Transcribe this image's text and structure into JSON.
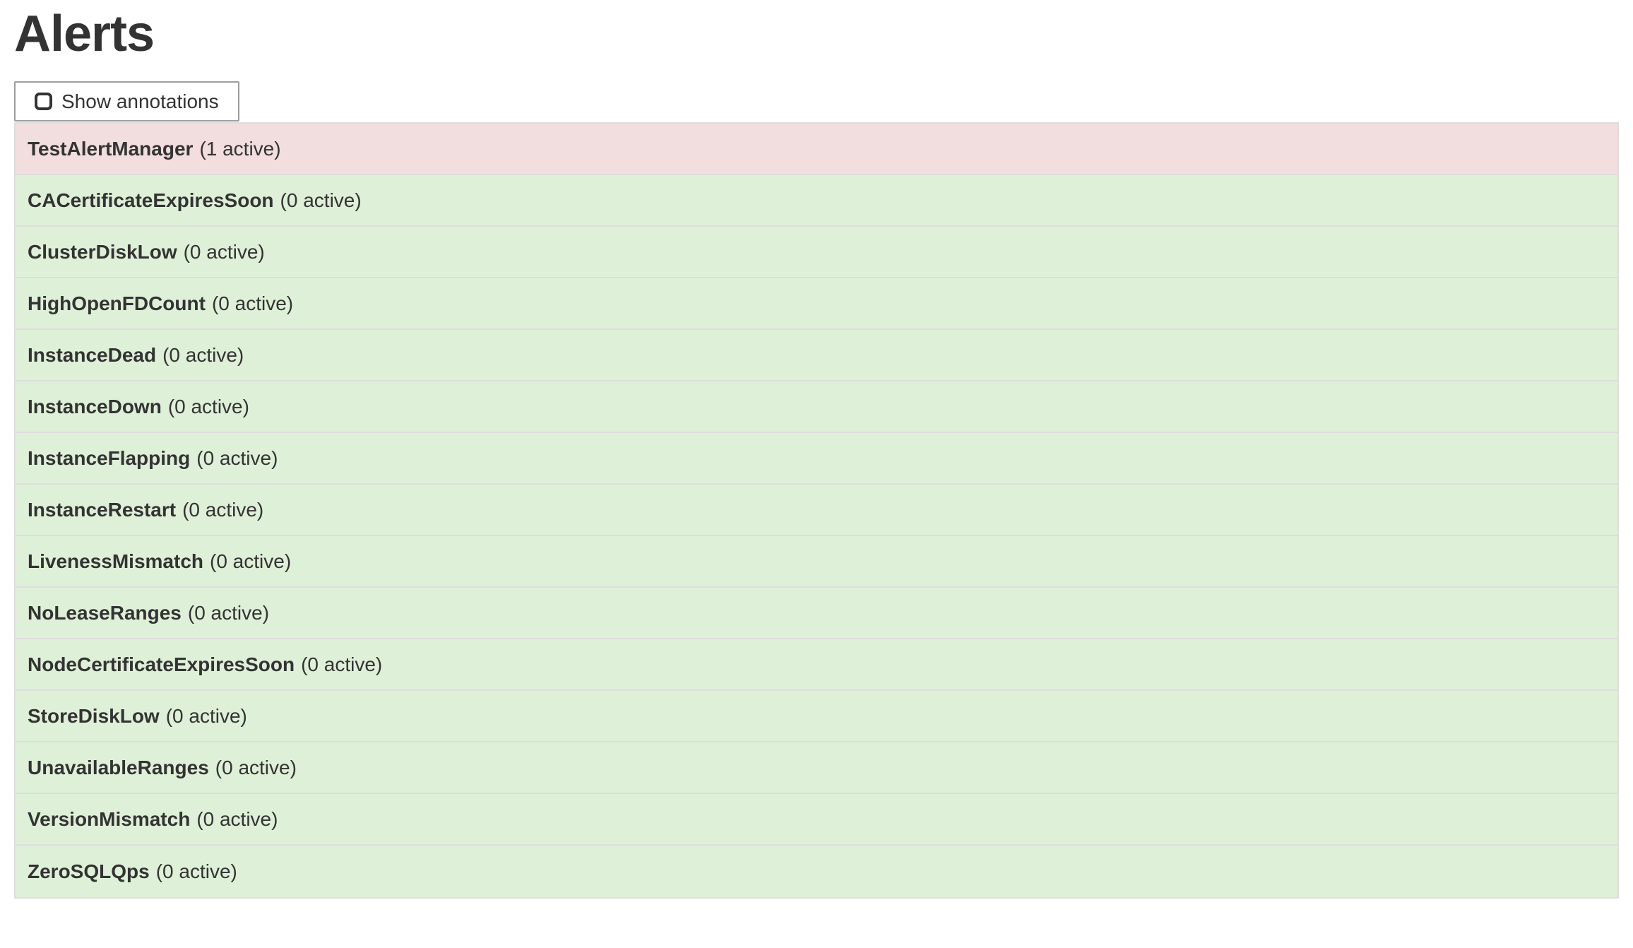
{
  "page": {
    "title": "Alerts",
    "show_annotations_label": "Show annotations"
  },
  "colors": {
    "firing_row_bg": "#f2dede",
    "inactive_row_bg": "#dff0d8",
    "row_border": "#dddddd",
    "button_border": "#9e9e9e",
    "text": "#333333"
  },
  "alerts": [
    {
      "name": "TestAlertManager",
      "count_label": "(1 active)",
      "state": "firing"
    },
    {
      "name": "CACertificateExpiresSoon",
      "count_label": "(0 active)",
      "state": "inactive"
    },
    {
      "name": "ClusterDiskLow",
      "count_label": "(0 active)",
      "state": "inactive"
    },
    {
      "name": "HighOpenFDCount",
      "count_label": "(0 active)",
      "state": "inactive"
    },
    {
      "name": "InstanceDead",
      "count_label": "(0 active)",
      "state": "inactive"
    },
    {
      "name": "InstanceDown",
      "count_label": "(0 active)",
      "state": "inactive"
    },
    {
      "name": "InstanceFlapping",
      "count_label": "(0 active)",
      "state": "inactive"
    },
    {
      "name": "InstanceRestart",
      "count_label": "(0 active)",
      "state": "inactive"
    },
    {
      "name": "LivenessMismatch",
      "count_label": "(0 active)",
      "state": "inactive"
    },
    {
      "name": "NoLeaseRanges",
      "count_label": "(0 active)",
      "state": "inactive"
    },
    {
      "name": "NodeCertificateExpiresSoon",
      "count_label": "(0 active)",
      "state": "inactive"
    },
    {
      "name": "StoreDiskLow",
      "count_label": "(0 active)",
      "state": "inactive"
    },
    {
      "name": "UnavailableRanges",
      "count_label": "(0 active)",
      "state": "inactive"
    },
    {
      "name": "VersionMismatch",
      "count_label": "(0 active)",
      "state": "inactive"
    },
    {
      "name": "ZeroSQLQps",
      "count_label": "(0 active)",
      "state": "inactive"
    }
  ]
}
